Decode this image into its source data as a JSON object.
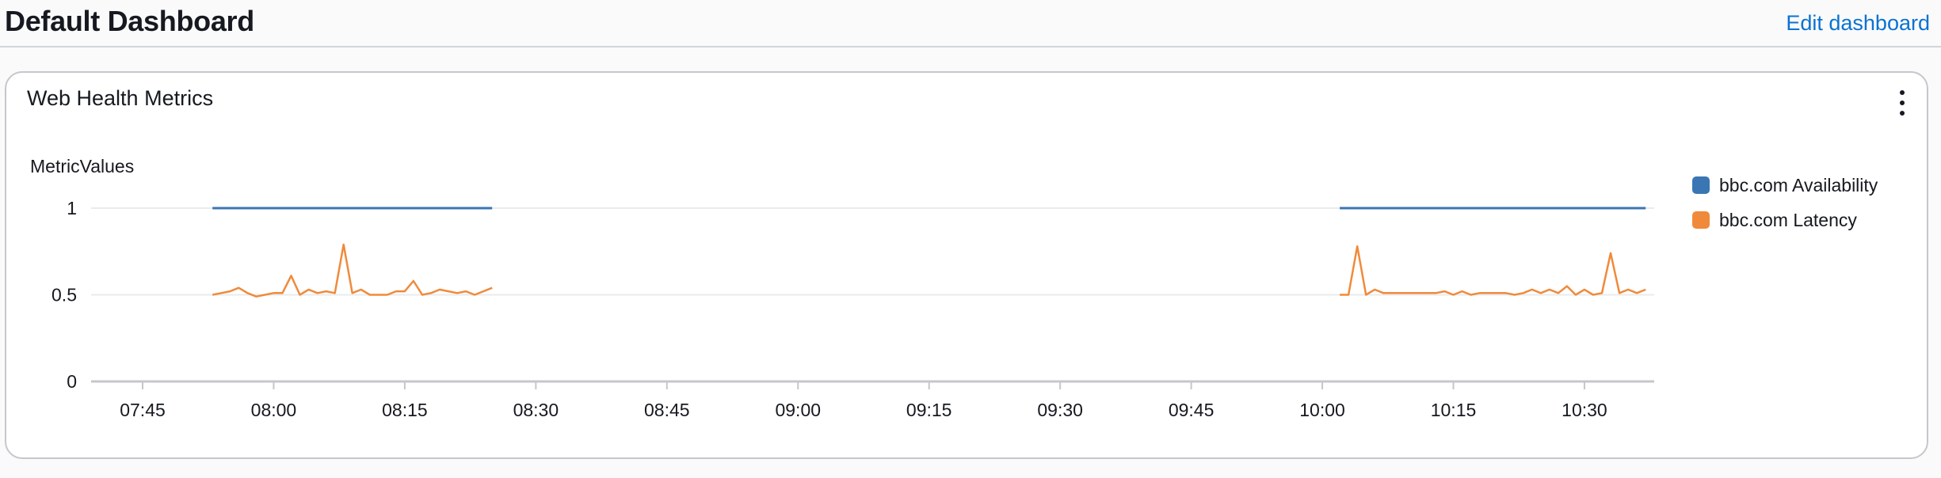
{
  "header": {
    "title": "Default Dashboard",
    "edit_label": "Edit dashboard"
  },
  "widget": {
    "title": "Web Health Metrics",
    "menu_icon": "kebab-vertical-icon"
  },
  "colors": {
    "accent_link": "#0972d3",
    "availability": "#3a76b3",
    "latency": "#f08a3a"
  },
  "chart_data": {
    "type": "line",
    "ylabel": "MetricValues",
    "xlabel": "",
    "ylim": [
      0,
      1
    ],
    "yticks": [
      {
        "v": 1,
        "label": "1"
      },
      {
        "v": 0.5,
        "label": "0.5"
      },
      {
        "v": 0,
        "label": "0"
      }
    ],
    "xlim": [
      "07:40",
      "10:38"
    ],
    "xticks": [
      "07:45",
      "08:00",
      "08:15",
      "08:30",
      "08:45",
      "09:00",
      "09:15",
      "09:30",
      "09:45",
      "10:00",
      "10:15",
      "10:30"
    ],
    "grid": true,
    "legend_position": "right",
    "series": [
      {
        "name": "bbc.com Availability",
        "color": "#3a76b3",
        "segments": [
          [
            [
              "07:53",
              1
            ],
            [
              "08:25",
              1
            ]
          ],
          [
            [
              "10:02",
              1
            ],
            [
              "10:37",
              1
            ]
          ]
        ]
      },
      {
        "name": "bbc.com Latency",
        "color": "#f08a3a",
        "segments": [
          [
            [
              "07:53",
              0.5
            ],
            [
              "07:54",
              0.51
            ],
            [
              "07:55",
              0.52
            ],
            [
              "07:56",
              0.54
            ],
            [
              "07:57",
              0.51
            ],
            [
              "07:58",
              0.49
            ],
            [
              "07:59",
              0.5
            ],
            [
              "08:00",
              0.51
            ],
            [
              "08:01",
              0.51
            ],
            [
              "08:02",
              0.61
            ],
            [
              "08:03",
              0.5
            ],
            [
              "08:04",
              0.53
            ],
            [
              "08:05",
              0.51
            ],
            [
              "08:06",
              0.52
            ],
            [
              "08:07",
              0.51
            ],
            [
              "08:08",
              0.79
            ],
            [
              "08:09",
              0.51
            ],
            [
              "08:10",
              0.53
            ],
            [
              "08:11",
              0.5
            ],
            [
              "08:12",
              0.5
            ],
            [
              "08:13",
              0.5
            ],
            [
              "08:14",
              0.52
            ],
            [
              "08:15",
              0.52
            ],
            [
              "08:16",
              0.58
            ],
            [
              "08:17",
              0.5
            ],
            [
              "08:18",
              0.51
            ],
            [
              "08:19",
              0.53
            ],
            [
              "08:20",
              0.52
            ],
            [
              "08:21",
              0.51
            ],
            [
              "08:22",
              0.52
            ],
            [
              "08:23",
              0.5
            ],
            [
              "08:24",
              0.52
            ],
            [
              "08:25",
              0.54
            ]
          ],
          [
            [
              "10:02",
              0.5
            ],
            [
              "10:03",
              0.5
            ],
            [
              "10:04",
              0.78
            ],
            [
              "10:05",
              0.5
            ],
            [
              "10:06",
              0.53
            ],
            [
              "10:07",
              0.51
            ],
            [
              "10:08",
              0.51
            ],
            [
              "10:09",
              0.51
            ],
            [
              "10:10",
              0.51
            ],
            [
              "10:11",
              0.51
            ],
            [
              "10:12",
              0.51
            ],
            [
              "10:13",
              0.51
            ],
            [
              "10:14",
              0.52
            ],
            [
              "10:15",
              0.5
            ],
            [
              "10:16",
              0.52
            ],
            [
              "10:17",
              0.5
            ],
            [
              "10:18",
              0.51
            ],
            [
              "10:19",
              0.51
            ],
            [
              "10:20",
              0.51
            ],
            [
              "10:21",
              0.51
            ],
            [
              "10:22",
              0.5
            ],
            [
              "10:23",
              0.51
            ],
            [
              "10:24",
              0.53
            ],
            [
              "10:25",
              0.51
            ],
            [
              "10:26",
              0.53
            ],
            [
              "10:27",
              0.51
            ],
            [
              "10:28",
              0.55
            ],
            [
              "10:29",
              0.5
            ],
            [
              "10:30",
              0.53
            ],
            [
              "10:31",
              0.5
            ],
            [
              "10:32",
              0.51
            ],
            [
              "10:33",
              0.74
            ],
            [
              "10:34",
              0.51
            ],
            [
              "10:35",
              0.53
            ],
            [
              "10:36",
              0.51
            ],
            [
              "10:37",
              0.53
            ]
          ]
        ]
      }
    ]
  }
}
